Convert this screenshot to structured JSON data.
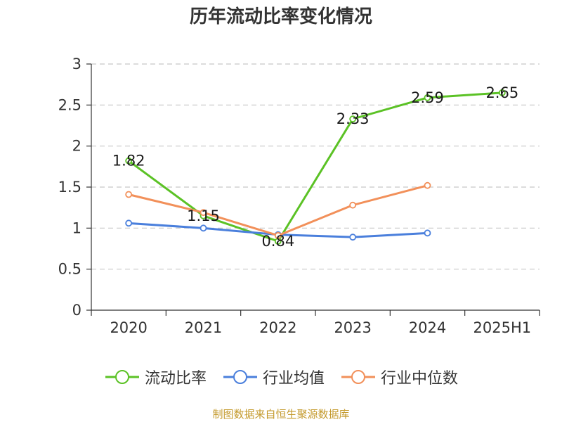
{
  "chart_data": {
    "type": "line",
    "title": "历年流动比率变化情况",
    "categories": [
      "2020",
      "2021",
      "2022",
      "2023",
      "2024",
      "2025H1"
    ],
    "ylim": [
      0,
      3
    ],
    "yticks": [
      "0",
      "0.5",
      "1",
      "1.5",
      "2",
      "2.5",
      "3"
    ],
    "grid": true,
    "legend_position": "bottom",
    "series": [
      {
        "name": "流动比率",
        "color": "#5bc225",
        "labels": true,
        "values": [
          1.82,
          1.15,
          0.84,
          2.33,
          2.59,
          2.65
        ],
        "value_labels": [
          "1.82",
          "1.15",
          "0.84",
          "2.33",
          "2.59",
          "2.65"
        ]
      },
      {
        "name": "行业均值",
        "color": "#4a7fdc",
        "labels": false,
        "values": [
          1.06,
          1.0,
          0.92,
          0.89,
          0.94,
          null
        ]
      },
      {
        "name": "行业中位数",
        "color": "#f2905a",
        "labels": false,
        "values": [
          1.41,
          1.19,
          0.91,
          1.28,
          1.52,
          null
        ]
      }
    ]
  },
  "source_note": "制图数据来自恒生聚源数据库"
}
